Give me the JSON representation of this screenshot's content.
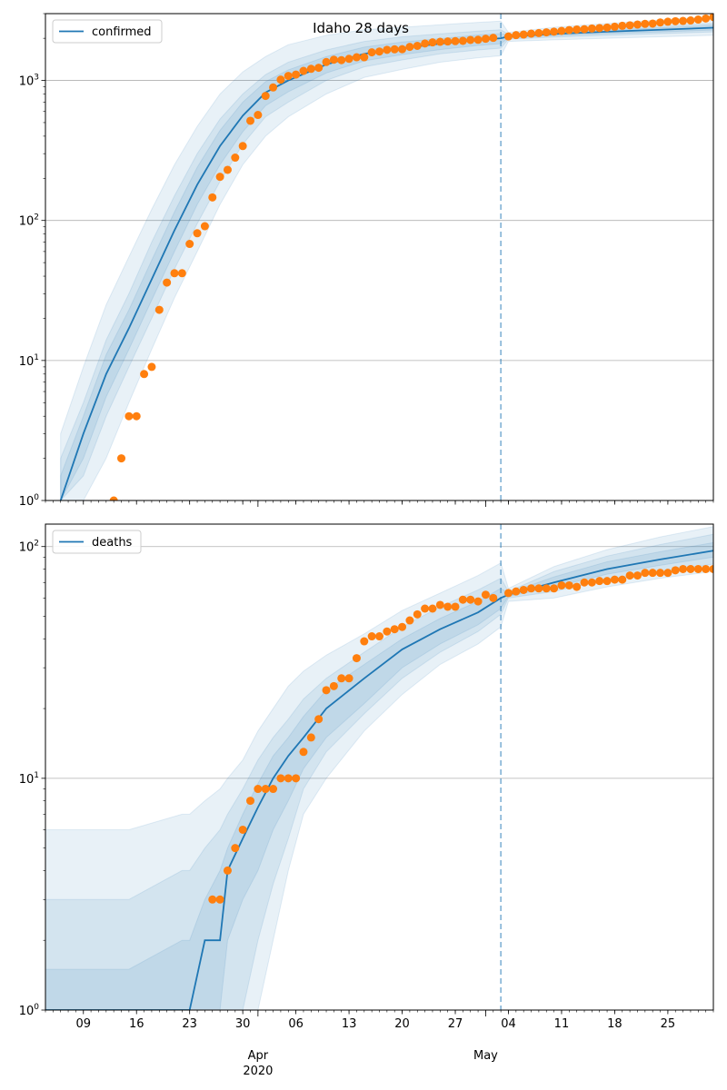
{
  "chart_data": [
    {
      "type": "line",
      "title": "Idaho 28 days",
      "legend": "upper-left",
      "legend_label": "confirmed",
      "yscale": "log",
      "ylim": [
        1,
        3000
      ],
      "y_ticks": [
        1,
        10,
        100,
        1000
      ],
      "y_tick_labels": [
        "10^0",
        "10^1",
        "10^2",
        "10^3"
      ],
      "grid": "y",
      "xlim": [
        "2020-03-04",
        "2020-05-31"
      ],
      "x_ticks": [
        "2020-03-09",
        "2020-03-16",
        "2020-03-23",
        "2020-03-30",
        "2020-04-06",
        "2020-04-13",
        "2020-04-20",
        "2020-04-27",
        "2020-05-04",
        "2020-05-11",
        "2020-05-18",
        "2020-05-25"
      ],
      "x_tick_labels": [
        "09",
        "16",
        "23",
        "30",
        "06",
        "13",
        "20",
        "27",
        "04",
        "11",
        "18",
        "25"
      ],
      "month_labels": [
        {
          "date": "2020-04-01",
          "text": "Apr",
          "sub": "2020"
        },
        {
          "date": "2020-05-01",
          "text": "May",
          "sub": ""
        }
      ],
      "forecast_start": "2020-05-03",
      "dates": [
        "2020-03-06",
        "2020-03-09",
        "2020-03-12",
        "2020-03-15",
        "2020-03-18",
        "2020-03-21",
        "2020-03-24",
        "2020-03-27",
        "2020-03-30",
        "2020-04-02",
        "2020-04-05",
        "2020-04-10",
        "2020-04-15",
        "2020-04-20",
        "2020-04-25",
        "2020-04-30",
        "2020-05-03",
        "2020-05-04",
        "2020-05-10",
        "2020-05-17",
        "2020-05-24",
        "2020-05-31"
      ],
      "median": [
        1,
        3,
        8,
        17,
        38,
        85,
        180,
        340,
        560,
        820,
        1000,
        1300,
        1550,
        1700,
        1830,
        1950,
        2000,
        2060,
        2150,
        2230,
        2300,
        2380
      ],
      "bands": [
        {
          "lower": [
            1,
            1,
            2,
            5,
            12,
            28,
            60,
            130,
            250,
            400,
            550,
            800,
            1050,
            1200,
            1350,
            1450,
            1500,
            1900,
            1950,
            2000,
            2050,
            2100
          ],
          "upper": [
            3,
            9,
            25,
            55,
            120,
            250,
            470,
            800,
            1150,
            1480,
            1800,
            2100,
            2300,
            2400,
            2500,
            2600,
            2650,
            2200,
            2400,
            2550,
            2700,
            2850
          ]
        },
        {
          "lower": [
            1,
            1.5,
            4,
            9,
            20,
            45,
            95,
            190,
            350,
            550,
            700,
            1000,
            1250,
            1400,
            1550,
            1650,
            1700,
            1970,
            2040,
            2100,
            2160,
            2220
          ],
          "upper": [
            2,
            5,
            14,
            30,
            70,
            150,
            300,
            530,
            800,
            1100,
            1350,
            1650,
            1900,
            2050,
            2150,
            2250,
            2300,
            2140,
            2260,
            2360,
            2450,
            2550
          ]
        },
        {
          "lower": [
            1,
            2,
            5.5,
            12,
            27,
            60,
            130,
            250,
            430,
            660,
            830,
            1130,
            1380,
            1530,
            1660,
            1780,
            1830,
            2010,
            2090,
            2160,
            2220,
            2290
          ],
          "upper": [
            1.5,
            4,
            11,
            23,
            52,
            115,
            240,
            440,
            700,
            980,
            1190,
            1480,
            1730,
            1880,
            1990,
            2110,
            2160,
            2100,
            2210,
            2300,
            2380,
            2470
          ]
        }
      ],
      "observed_dates": [
        "2020-03-13",
        "2020-03-14",
        "2020-03-15",
        "2020-03-16",
        "2020-03-17",
        "2020-03-18",
        "2020-03-19",
        "2020-03-20",
        "2020-03-21",
        "2020-03-22",
        "2020-03-23",
        "2020-03-24",
        "2020-03-25",
        "2020-03-26",
        "2020-03-27",
        "2020-03-28",
        "2020-03-29",
        "2020-03-30",
        "2020-03-31",
        "2020-04-01",
        "2020-04-02",
        "2020-04-03",
        "2020-04-04",
        "2020-04-05",
        "2020-04-06",
        "2020-04-07",
        "2020-04-08",
        "2020-04-09",
        "2020-04-10",
        "2020-04-11",
        "2020-04-12",
        "2020-04-13",
        "2020-04-14",
        "2020-04-15",
        "2020-04-16",
        "2020-04-17",
        "2020-04-18",
        "2020-04-19",
        "2020-04-20",
        "2020-04-21",
        "2020-04-22",
        "2020-04-23",
        "2020-04-24",
        "2020-04-25",
        "2020-04-26",
        "2020-04-27",
        "2020-04-28",
        "2020-04-29",
        "2020-04-30",
        "2020-05-01",
        "2020-05-02",
        "2020-05-04",
        "2020-05-05",
        "2020-05-06",
        "2020-05-07",
        "2020-05-08",
        "2020-05-09",
        "2020-05-10",
        "2020-05-11",
        "2020-05-12",
        "2020-05-13",
        "2020-05-14",
        "2020-05-15",
        "2020-05-16",
        "2020-05-17",
        "2020-05-18",
        "2020-05-19",
        "2020-05-20",
        "2020-05-21",
        "2020-05-22",
        "2020-05-23",
        "2020-05-24",
        "2020-05-25",
        "2020-05-26",
        "2020-05-27",
        "2020-05-28",
        "2020-05-29",
        "2020-05-30",
        "2020-05-31"
      ],
      "observed": [
        1,
        2,
        4,
        4,
        8,
        9,
        23,
        36,
        42,
        42,
        68,
        81,
        91,
        146,
        205,
        230,
        281,
        340,
        515,
        567,
        775,
        891,
        1013,
        1077,
        1101,
        1170,
        1210,
        1232,
        1353,
        1407,
        1396,
        1426,
        1464,
        1464,
        1587,
        1609,
        1655,
        1668,
        1672,
        1736,
        1766,
        1836,
        1870,
        1887,
        1897,
        1908,
        1917,
        1947,
        1952,
        1984,
        2015,
        2061,
        2106,
        2127,
        2158,
        2178,
        2205,
        2230,
        2260,
        2290,
        2311,
        2324,
        2351,
        2367,
        2386,
        2419,
        2455,
        2476,
        2506,
        2534,
        2546,
        2595,
        2626,
        2649,
        2661,
        2681,
        2722,
        2770,
        2836
      ]
    },
    {
      "type": "line",
      "title": "",
      "legend": "upper-left",
      "legend_label": "deaths",
      "yscale": "log",
      "ylim": [
        1,
        125
      ],
      "y_ticks": [
        1,
        10,
        100
      ],
      "y_tick_labels": [
        "10^0",
        "10^1",
        "10^2"
      ],
      "grid": "y",
      "xlim": [
        "2020-03-04",
        "2020-05-31"
      ],
      "x_ticks": [
        "2020-03-09",
        "2020-03-16",
        "2020-03-23",
        "2020-03-30",
        "2020-04-06",
        "2020-04-13",
        "2020-04-20",
        "2020-04-27",
        "2020-05-04",
        "2020-05-11",
        "2020-05-18",
        "2020-05-25"
      ],
      "x_tick_labels": [
        "09",
        "16",
        "23",
        "30",
        "06",
        "13",
        "20",
        "27",
        "04",
        "11",
        "18",
        "25"
      ],
      "month_labels": [
        {
          "date": "2020-04-01",
          "text": "Apr",
          "sub": "2020"
        },
        {
          "date": "2020-05-01",
          "text": "May",
          "sub": ""
        }
      ],
      "forecast_start": "2020-05-03",
      "dates": [
        "2020-03-04",
        "2020-03-10",
        "2020-03-15",
        "2020-03-22",
        "2020-03-23",
        "2020-03-25",
        "2020-03-27",
        "2020-03-28",
        "2020-03-30",
        "2020-04-01",
        "2020-04-03",
        "2020-04-05",
        "2020-04-07",
        "2020-04-10",
        "2020-04-15",
        "2020-04-20",
        "2020-04-25",
        "2020-04-30",
        "2020-05-03",
        "2020-05-04",
        "2020-05-10",
        "2020-05-17",
        "2020-05-24",
        "2020-05-31"
      ],
      "median": [
        1,
        1,
        1,
        1,
        1,
        2,
        2,
        4,
        5.5,
        7.5,
        10,
        12.5,
        15,
        20,
        27,
        36,
        44,
        52,
        60,
        62,
        70,
        80,
        88,
        96
      ],
      "bands": [
        {
          "lower": [
            0.5,
            0.5,
            0.5,
            0.5,
            0.5,
            0.5,
            0.5,
            0.5,
            0.5,
            1,
            2,
            4,
            7,
            10,
            16,
            23,
            31,
            38,
            45,
            58,
            60,
            67,
            73,
            78
          ],
          "upper": [
            6,
            6,
            6,
            7,
            7,
            8,
            9,
            10,
            12,
            16,
            20,
            25,
            29,
            34,
            42,
            53,
            63,
            75,
            85,
            66,
            82,
            97,
            110,
            122
          ]
        },
        {
          "lower": [
            0.5,
            0.5,
            0.5,
            0.5,
            0.5,
            0.5,
            0.5,
            0.5,
            1,
            2,
            3.5,
            5.5,
            9,
            13,
            19,
            27,
            35,
            43,
            51,
            60,
            64,
            72,
            78,
            84
          ],
          "upper": [
            3,
            3,
            3,
            4,
            4,
            5,
            6,
            7,
            9,
            12,
            15,
            18,
            22,
            27,
            35,
            45,
            55,
            65,
            73,
            64,
            78,
            91,
            102,
            113
          ]
        },
        {
          "lower": [
            0.5,
            0.5,
            1,
            1,
            1,
            1,
            1,
            2,
            3,
            4,
            6,
            8,
            11,
            15,
            21,
            30,
            38,
            46,
            54,
            61,
            67,
            76,
            83,
            90
          ],
          "upper": [
            1.5,
            1.5,
            1.5,
            2,
            2,
            3,
            4,
            5,
            7,
            9.5,
            12.5,
            15,
            18.5,
            24,
            31,
            40,
            49,
            58,
            66,
            63,
            74,
            86,
            95,
            104
          ]
        }
      ],
      "observed_dates": [
        "2020-03-26",
        "2020-03-27",
        "2020-03-28",
        "2020-03-29",
        "2020-03-30",
        "2020-03-31",
        "2020-04-01",
        "2020-04-02",
        "2020-04-03",
        "2020-04-04",
        "2020-04-05",
        "2020-04-06",
        "2020-04-07",
        "2020-04-08",
        "2020-04-09",
        "2020-04-10",
        "2020-04-11",
        "2020-04-12",
        "2020-04-13",
        "2020-04-14",
        "2020-04-15",
        "2020-04-16",
        "2020-04-17",
        "2020-04-18",
        "2020-04-19",
        "2020-04-20",
        "2020-04-21",
        "2020-04-22",
        "2020-04-23",
        "2020-04-24",
        "2020-04-25",
        "2020-04-26",
        "2020-04-27",
        "2020-04-28",
        "2020-04-29",
        "2020-04-30",
        "2020-05-01",
        "2020-05-02",
        "2020-05-04",
        "2020-05-05",
        "2020-05-06",
        "2020-05-07",
        "2020-05-08",
        "2020-05-09",
        "2020-05-10",
        "2020-05-11",
        "2020-05-12",
        "2020-05-13",
        "2020-05-14",
        "2020-05-15",
        "2020-05-16",
        "2020-05-17",
        "2020-05-18",
        "2020-05-19",
        "2020-05-20",
        "2020-05-21",
        "2020-05-22",
        "2020-05-23",
        "2020-05-24",
        "2020-05-25",
        "2020-05-26",
        "2020-05-27",
        "2020-05-28",
        "2020-05-29",
        "2020-05-30",
        "2020-05-31"
      ],
      "observed": [
        3,
        3,
        4,
        5,
        6,
        8,
        9,
        9,
        9,
        10,
        10,
        10,
        13,
        15,
        18,
        24,
        25,
        27,
        27,
        33,
        39,
        41,
        41,
        43,
        44,
        45,
        48,
        51,
        54,
        54,
        56,
        55,
        55,
        59,
        59,
        58,
        62,
        60,
        63,
        64,
        65,
        66,
        66,
        66,
        66,
        68,
        68,
        67,
        70,
        70,
        71,
        71,
        72,
        72,
        75,
        75,
        77,
        77,
        77,
        77,
        79,
        80,
        80,
        80,
        80,
        80
      ]
    }
  ]
}
